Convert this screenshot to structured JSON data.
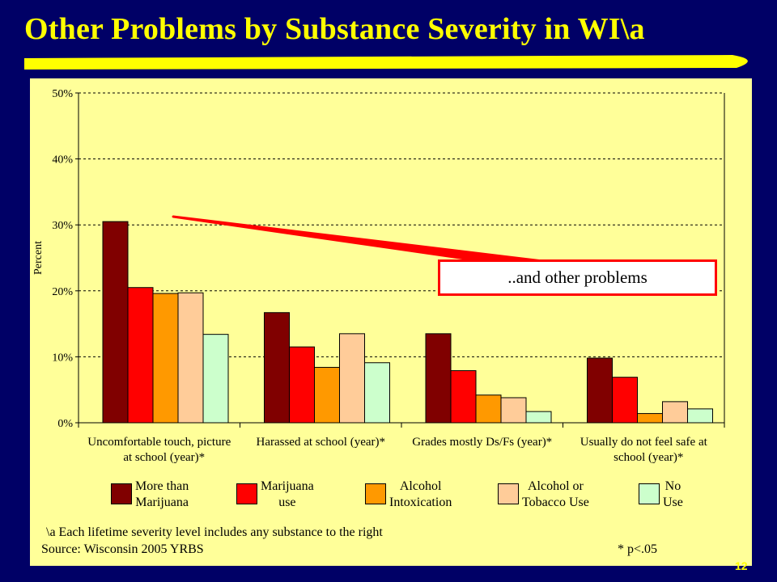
{
  "slide": {
    "title": "Other Problems by Substance Severity in WI\\a",
    "page_number": "12",
    "callout": "..and other problems",
    "footnote": "\\a  Each lifetime severity level includes any substance to the right",
    "source": "Source: Wisconsin 2005 YRBS",
    "significance": "* p<.05"
  },
  "colors": {
    "background": "#000066",
    "title": "#ffff00",
    "plot_panel": "#ffff99",
    "callout_border": "#ff0000"
  },
  "chart_data": {
    "type": "bar",
    "ylabel": "Percent",
    "xlabel": "",
    "ylim": [
      0,
      50
    ],
    "y_ticks": [
      "0%",
      "10%",
      "20%",
      "30%",
      "40%",
      "50%"
    ],
    "grid": "horizontal dashed",
    "legend_position": "bottom",
    "categories": [
      "Uncomfortable touch, picture\nat school (year)*",
      "Harassed at school (year)*",
      "Grades mostly Ds/Fs (year)*",
      "Usually do not feel safe at\nschool (year)*"
    ],
    "series": [
      {
        "name": "More than\nMarijuana",
        "color": "#800000",
        "values": [
          30.5,
          16.7,
          13.5,
          9.8
        ]
      },
      {
        "name": "Marijuana\nuse",
        "color": "#ff0000",
        "values": [
          20.5,
          11.5,
          7.9,
          6.9
        ]
      },
      {
        "name": "Alcohol\nIntoxication",
        "color": "#ff9900",
        "values": [
          19.6,
          8.4,
          4.2,
          1.4
        ]
      },
      {
        "name": "Alcohol or\nTobacco Use",
        "color": "#ffcc99",
        "values": [
          19.7,
          13.5,
          3.8,
          3.2
        ]
      },
      {
        "name": "No\nUse",
        "color": "#ccffcc",
        "values": [
          13.4,
          9.1,
          1.7,
          2.1
        ]
      }
    ]
  }
}
